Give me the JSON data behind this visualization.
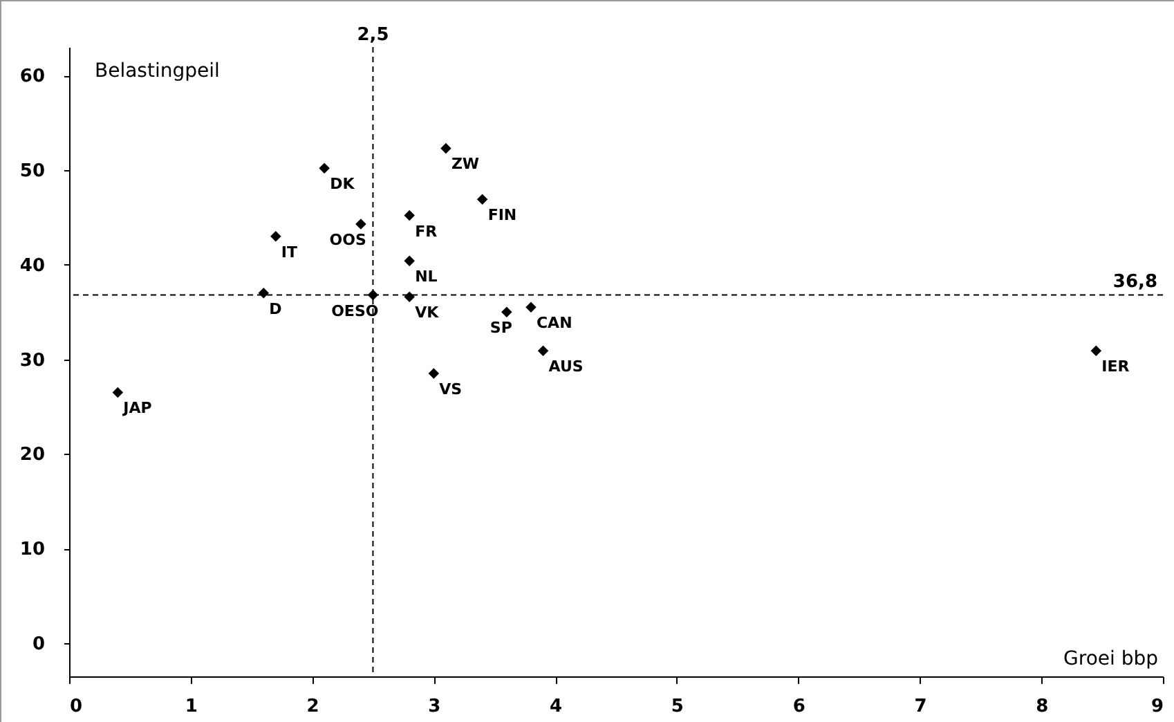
{
  "chart_data": {
    "type": "scatter",
    "xlabel": "Groei bbp",
    "ylabel": "Belastingpeil",
    "x": [
      0.4,
      1.6,
      1.7,
      2.1,
      2.4,
      2.5,
      2.8,
      2.8,
      2.8,
      3.1,
      3.4,
      3.0,
      3.6,
      3.8,
      3.9,
      8.45
    ],
    "values": [
      26.5,
      37.0,
      43.0,
      50.2,
      44.3,
      36.8,
      45.2,
      40.4,
      36.6,
      52.3,
      46.9,
      28.5,
      35.0,
      35.5,
      30.9,
      30.9
    ],
    "color": "#000000",
    "marker": "diamond",
    "grid": false,
    "xlim": [
      0,
      9
    ],
    "xticks": [
      0,
      1,
      2,
      3,
      4,
      5,
      6,
      7,
      8,
      9
    ],
    "ylim": [
      -3.5,
      63
    ],
    "yticks": [
      0,
      10,
      20,
      30,
      40,
      50,
      60
    ],
    "ref_lines": [
      {
        "axis": "x",
        "value": 2.5,
        "label": "2,5",
        "line_style": "dashed",
        "color": "#000000"
      },
      {
        "axis": "y",
        "value": 36.8,
        "label": "36,8",
        "line_style": "dashed",
        "color": "#000000"
      }
    ],
    "annotations": [
      {
        "text": "JAP",
        "x": 0.4,
        "y": 26.5
      },
      {
        "text": "D",
        "x": 1.6,
        "y": 37.0
      },
      {
        "text": "IT",
        "x": 1.7,
        "y": 43.0
      },
      {
        "text": "DK",
        "x": 2.1,
        "y": 50.2
      },
      {
        "text": "OOS",
        "x": 2.4,
        "y": 44.3
      },
      {
        "text": "OESO",
        "x": 2.5,
        "y": 36.8
      },
      {
        "text": "FR",
        "x": 2.8,
        "y": 45.2
      },
      {
        "text": "NL",
        "x": 2.8,
        "y": 40.4
      },
      {
        "text": "VK",
        "x": 2.8,
        "y": 36.6
      },
      {
        "text": "ZW",
        "x": 3.1,
        "y": 52.3
      },
      {
        "text": "FIN",
        "x": 3.4,
        "y": 46.9
      },
      {
        "text": "VS",
        "x": 3.0,
        "y": 28.5
      },
      {
        "text": "SP",
        "x": 3.6,
        "y": 35.0
      },
      {
        "text": "CAN",
        "x": 3.8,
        "y": 35.5
      },
      {
        "text": "AUS",
        "x": 3.9,
        "y": 30.9
      },
      {
        "text": "IER",
        "x": 8.45,
        "y": 30.9
      }
    ]
  }
}
